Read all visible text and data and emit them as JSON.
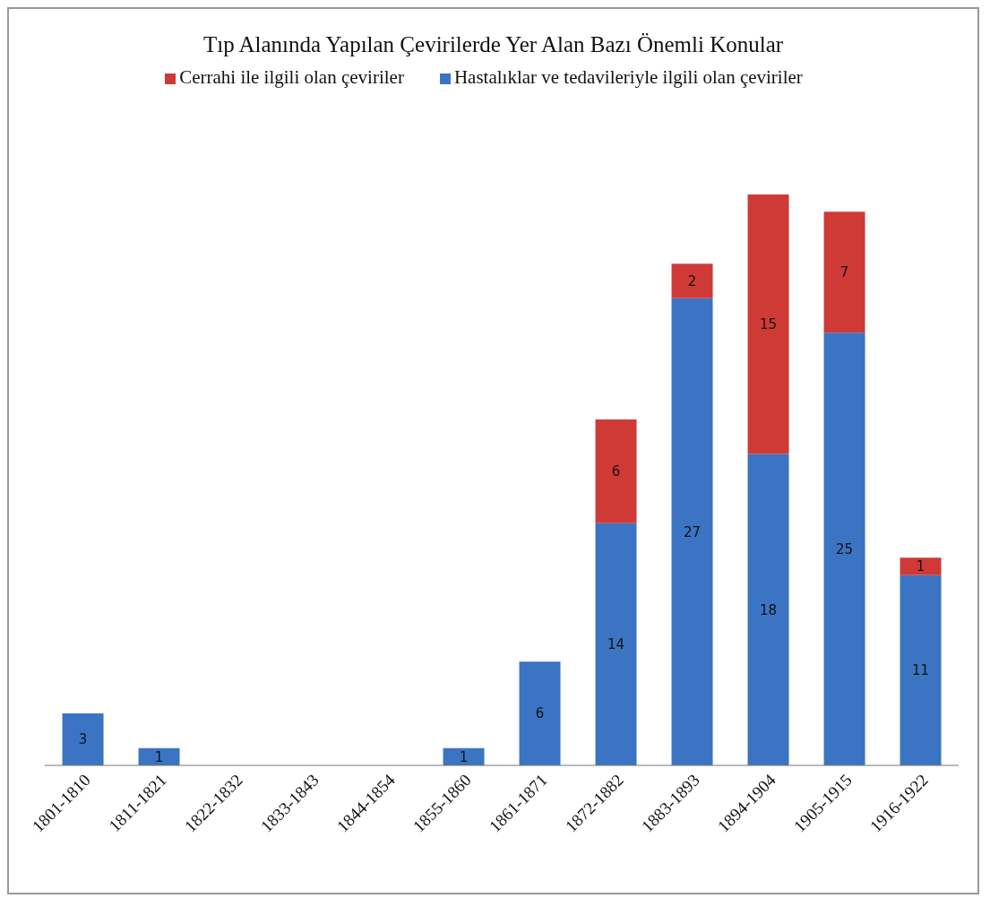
{
  "chart_data": {
    "type": "bar",
    "title": "Tıp Alanında Yapılan Çevirilerde Yer Alan Bazı Önemli Konular",
    "categories": [
      "1801-1810",
      "1811-1821",
      "1822-1832",
      "1833-1843",
      "1844-1854",
      "1855-1860",
      "1861-1871",
      "1872-1882",
      "1883-1893",
      "1894-1904",
      "1905-1915",
      "1916-1922"
    ],
    "series": [
      {
        "name": "Hastalıklar ve tedavileriyle ilgili olan çeviriler",
        "color": "#3b74c2",
        "values": [
          3,
          1,
          null,
          null,
          null,
          1,
          6,
          14,
          27,
          18,
          25,
          11
        ]
      },
      {
        "name": "Cerrahi ile ilgili olan çeviriler",
        "color": "#cf3a37",
        "values": [
          null,
          null,
          null,
          null,
          null,
          null,
          null,
          6,
          2,
          15,
          7,
          1
        ]
      }
    ],
    "stacked": true,
    "data_labels": true,
    "legend": "top",
    "grid": false
  }
}
